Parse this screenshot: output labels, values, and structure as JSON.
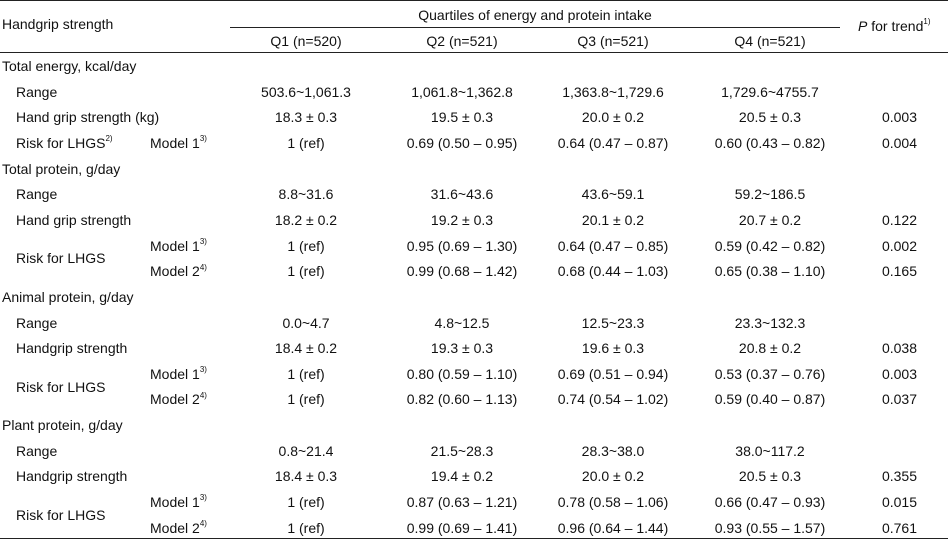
{
  "header": {
    "row_label": "Handgrip strength",
    "group_label": "Quartiles of energy and protein intake",
    "quartiles": [
      "Q1 (n=520)",
      "Q2 (n=521)",
      "Q3 (n=521)",
      "Q4 (n=521)"
    ],
    "p_trend_italic": "P",
    "p_trend_text": " for trend",
    "p_trend_sup": "1)"
  },
  "sections": [
    {
      "title": "Total energy, kcal/day",
      "rows": [
        {
          "label": "Range",
          "values": [
            "503.6~1,061.3",
            "1,061.8~1,362.8",
            "1,363.8~1,729.6",
            "1,729.6~4755.7"
          ],
          "p": ""
        },
        {
          "label": "Hand grip strength (kg)",
          "values": [
            "18.3 ± 0.3",
            "19.5 ± 0.3",
            "20.0 ± 0.2",
            "20.5 ± 0.3"
          ],
          "p": "0.003"
        },
        {
          "label": "Risk for LHGS",
          "label_sup": "2)",
          "model": "Model 1",
          "model_sup": "3)",
          "values": [
            "1 (ref)",
            "0.69 (0.50 – 0.95)",
            "0.64 (0.47 – 0.87)",
            "0.60 (0.43 – 0.82)"
          ],
          "p": "0.004"
        }
      ]
    },
    {
      "title": "Total protein, g/day",
      "rows": [
        {
          "label": "Range",
          "values": [
            "8.8~31.6",
            "31.6~43.6",
            "43.6~59.1",
            "59.2~186.5"
          ],
          "p": ""
        },
        {
          "label": "Hand grip strength",
          "values": [
            "18.2 ± 0.2",
            "19.2 ± 0.3",
            "20.1 ± 0.2",
            "20.7 ± 0.2"
          ],
          "p": "0.122"
        },
        {
          "label": "Risk for LHGS",
          "model": "Model 1",
          "model_sup": "3)",
          "values": [
            "1 (ref)",
            "0.95 (0.69 – 1.30)",
            "0.64 (0.47 – 0.85)",
            "0.59 (0.42 – 0.82)"
          ],
          "p": "0.002"
        },
        {
          "model": "Model 2",
          "model_sup": "4)",
          "values": [
            "1 (ref)",
            "0.99 (0.68 – 1.42)",
            "0.68 (0.44 – 1.03)",
            "0.65 (0.38 – 1.10)"
          ],
          "p": "0.165"
        }
      ]
    },
    {
      "title": "Animal protein, g/day",
      "rows": [
        {
          "label": "Range",
          "values": [
            "0.0~4.7",
            "4.8~12.5",
            "12.5~23.3",
            "23.3~132.3"
          ],
          "p": ""
        },
        {
          "label": "Handgrip strength",
          "values": [
            "18.4 ± 0.2",
            "19.3 ± 0.3",
            "19.6 ± 0.3",
            "20.8 ± 0.2"
          ],
          "p": "0.038"
        },
        {
          "label": "Risk for LHGS",
          "model": "Model 1",
          "model_sup": "3)",
          "values": [
            "1 (ref)",
            "0.80 (0.59 – 1.10)",
            "0.69 (0.51 – 0.94)",
            "0.53 (0.37 – 0.76)"
          ],
          "p": "0.003"
        },
        {
          "model": "Model 2",
          "model_sup": "4)",
          "values": [
            "1 (ref)",
            "0.82 (0.60 – 1.13)",
            "0.74 (0.54 – 1.02)",
            "0.59 (0.40 – 0.87)"
          ],
          "p": "0.037"
        }
      ]
    },
    {
      "title": "Plant protein, g/day",
      "rows": [
        {
          "label": "Range",
          "values": [
            "0.8~21.4",
            "21.5~28.3",
            "28.3~38.0",
            "38.0~117.2"
          ],
          "p": ""
        },
        {
          "label": "Handgrip strength",
          "values": [
            "18.4 ± 0.3",
            "19.4 ± 0.2",
            "20.0 ± 0.2",
            "20.5 ± 0.3"
          ],
          "p": "0.355"
        },
        {
          "label": "Risk for LHGS",
          "model": "Model 1",
          "model_sup": "3)",
          "values": [
            "1 (ref)",
            "0.87 (0.63 – 1.21)",
            "0.78 (0.58 – 1.06)",
            "0.66 (0.47 – 0.93)"
          ],
          "p": "0.015"
        },
        {
          "model": "Model 2",
          "model_sup": "4)",
          "values": [
            "1 (ref)",
            "0.99 (0.69 – 1.41)",
            "0.96 (0.64 – 1.44)",
            "0.93 (0.55 – 1.57)"
          ],
          "p": "0.761"
        }
      ]
    }
  ]
}
